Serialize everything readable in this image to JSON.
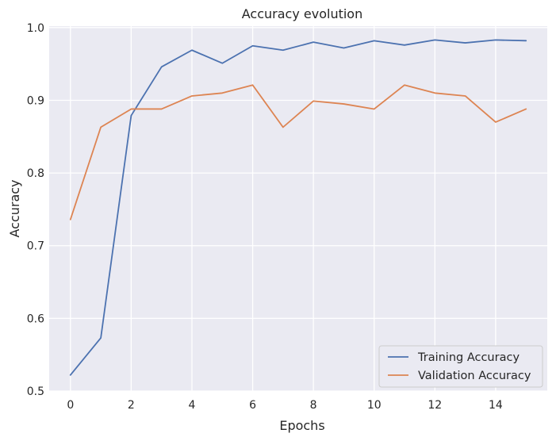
{
  "chart_data": {
    "type": "line",
    "title": "Accuracy evolution",
    "xlabel": "Epochs",
    "ylabel": "Accuracy",
    "x": [
      0,
      1,
      2,
      3,
      4,
      5,
      6,
      7,
      8,
      9,
      10,
      11,
      12,
      13,
      14,
      15
    ],
    "xlim": [
      -0.7,
      15.7
    ],
    "ylim": [
      0.5,
      1.002
    ],
    "xticks": [
      0,
      2,
      4,
      6,
      8,
      10,
      12,
      14
    ],
    "yticks": [
      0.5,
      0.6,
      0.7,
      0.8,
      0.9,
      1.0
    ],
    "xtick_labels": [
      "0",
      "2",
      "4",
      "6",
      "8",
      "10",
      "12",
      "14"
    ],
    "ytick_labels": [
      "0.5",
      "0.6",
      "0.7",
      "0.8",
      "0.9",
      "1.0"
    ],
    "grid": true,
    "legend_position": "bottom-right",
    "series": [
      {
        "name": "Training Accuracy",
        "color": "#4c72b0",
        "values": [
          0.522,
          0.573,
          0.879,
          0.946,
          0.969,
          0.951,
          0.975,
          0.969,
          0.98,
          0.972,
          0.982,
          0.976,
          0.983,
          0.979,
          0.983,
          0.982
        ]
      },
      {
        "name": "Validation Accuracy",
        "color": "#dd8452",
        "values": [
          0.736,
          0.863,
          0.888,
          0.888,
          0.906,
          0.91,
          0.921,
          0.863,
          0.899,
          0.895,
          0.888,
          0.921,
          0.91,
          0.906,
          0.87,
          0.888
        ]
      }
    ]
  }
}
